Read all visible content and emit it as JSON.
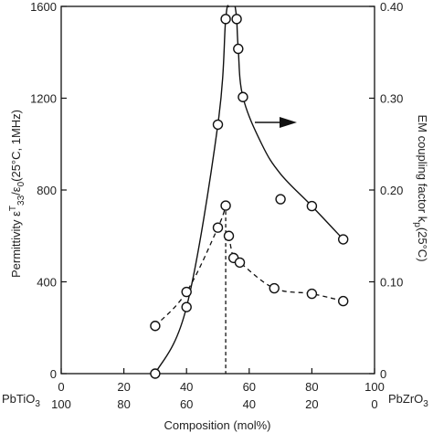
{
  "chart_data": {
    "type": "line",
    "ylabel_left": "Permittivity ε^T_33/ε_0(25°C, 1MHz)",
    "ylabel_left_parts": [
      "Permittivity ε",
      "T",
      "33",
      "/ε",
      "0",
      "(25°C, 1MHz)"
    ],
    "ylabel_right": "EM coupling factor k_p(25°C)",
    "ylabel_right_parts": [
      "EM coupling factor k",
      "p",
      "(25°C)"
    ],
    "xlabel": "Composition (mol%)",
    "left_end_label": "PbTiO₃",
    "right_end_label": "PbZrO₃",
    "x_top_ticks": [
      "0",
      "20",
      "40",
      "60",
      "80",
      "100"
    ],
    "x_bottom_ticks": [
      "100",
      "80",
      "60",
      "40",
      "20",
      "0"
    ],
    "x_tick_values": [
      0,
      20,
      40,
      60,
      80,
      100
    ],
    "xlim": [
      0,
      100
    ],
    "ylim_left": [
      0,
      1600
    ],
    "ylim_right": [
      0,
      0.4
    ],
    "yticks_left": [
      "0",
      "400",
      "800",
      "1200",
      "1600"
    ],
    "yticks_right": [
      "0",
      "0.10",
      "0.20",
      "0.30",
      "0.40"
    ],
    "yticks_left_values": [
      0,
      400,
      800,
      1200,
      1600
    ],
    "yticks_right_values": [
      0,
      0.1,
      0.2,
      0.3,
      0.4
    ],
    "mpb_x": 52.5,
    "series": [
      {
        "axis": "left",
        "style": "solid",
        "x": [
          30,
          40,
          50,
          52.5,
          56,
          56.5,
          58,
          70,
          80,
          90
        ],
        "y": [
          0,
          290,
          1085,
          1545,
          1545,
          1415,
          1205,
          760,
          730,
          585
        ]
      },
      {
        "axis": "right",
        "style": "dashed",
        "x": [
          30,
          40,
          50,
          52.5,
          53.5,
          55,
          57,
          68,
          80,
          90
        ],
        "y": [
          0.052,
          0.089,
          0.159,
          0.183,
          0.15,
          0.126,
          0.121,
          0.093,
          0.087,
          0.079
        ]
      }
    ],
    "annotation": "arrow pointing right"
  }
}
